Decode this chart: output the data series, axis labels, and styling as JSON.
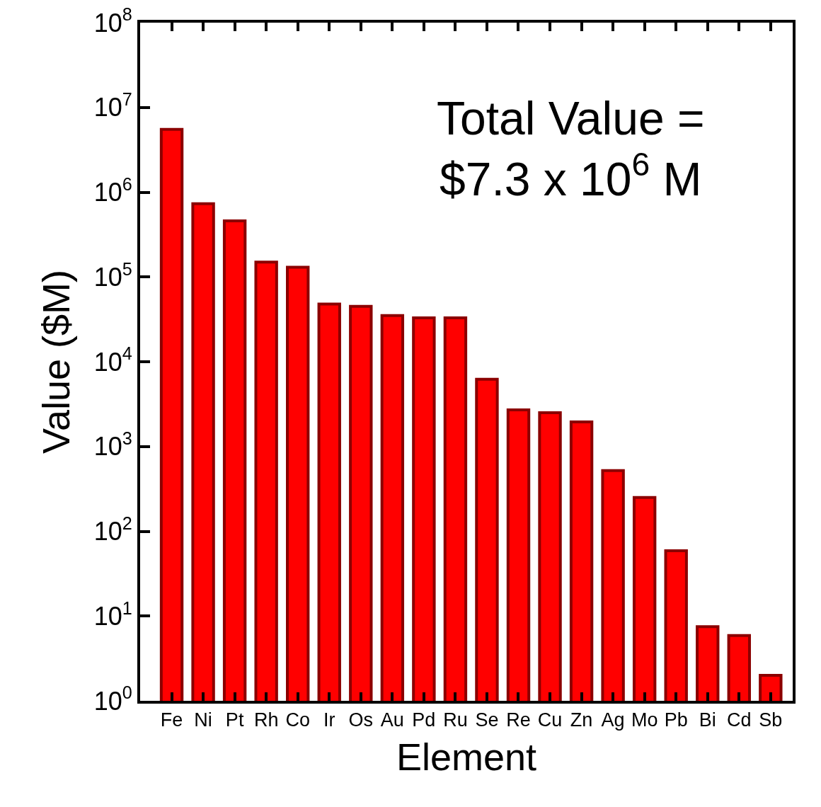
{
  "chart_data": {
    "type": "bar",
    "xlabel": "Element",
    "ylabel": "Value ($M)",
    "categories": [
      "Fe",
      "Ni",
      "Pt",
      "Rh",
      "Co",
      "Ir",
      "Os",
      "Au",
      "Pd",
      "Ru",
      "Se",
      "Re",
      "Cu",
      "Zn",
      "Ag",
      "Mo",
      "Pb",
      "Bi",
      "Cd",
      "Sb"
    ],
    "values": [
      5500000,
      730000,
      460000,
      150000,
      130000,
      48000,
      45000,
      35000,
      33000,
      33000,
      6200,
      2700,
      2500,
      1950,
      520,
      250,
      59,
      7.5,
      5.9,
      2
    ],
    "color": "#ff0000",
    "log": true,
    "ylim": [
      1,
      100000000
    ],
    "yticks": [
      {
        "value": 1,
        "label": "10$^{0}$"
      },
      {
        "value": 10,
        "label": "10$^{1}$"
      },
      {
        "value": 100,
        "label": "10$^{2}$"
      },
      {
        "value": 1000,
        "label": "10$^{3}$"
      },
      {
        "value": 10000,
        "label": "10$^{4}$"
      },
      {
        "value": 100000,
        "label": "10$^{5}$"
      },
      {
        "value": 1000000,
        "label": "10$^{6}$"
      },
      {
        "value": 10000000,
        "label": "10$^{7}$"
      },
      {
        "value": 100000000,
        "label": "10$^{8}$"
      }
    ],
    "grid": false,
    "annotations": [
      "Total Value =\n$7.3 x 10$^{6}$ M"
    ]
  }
}
